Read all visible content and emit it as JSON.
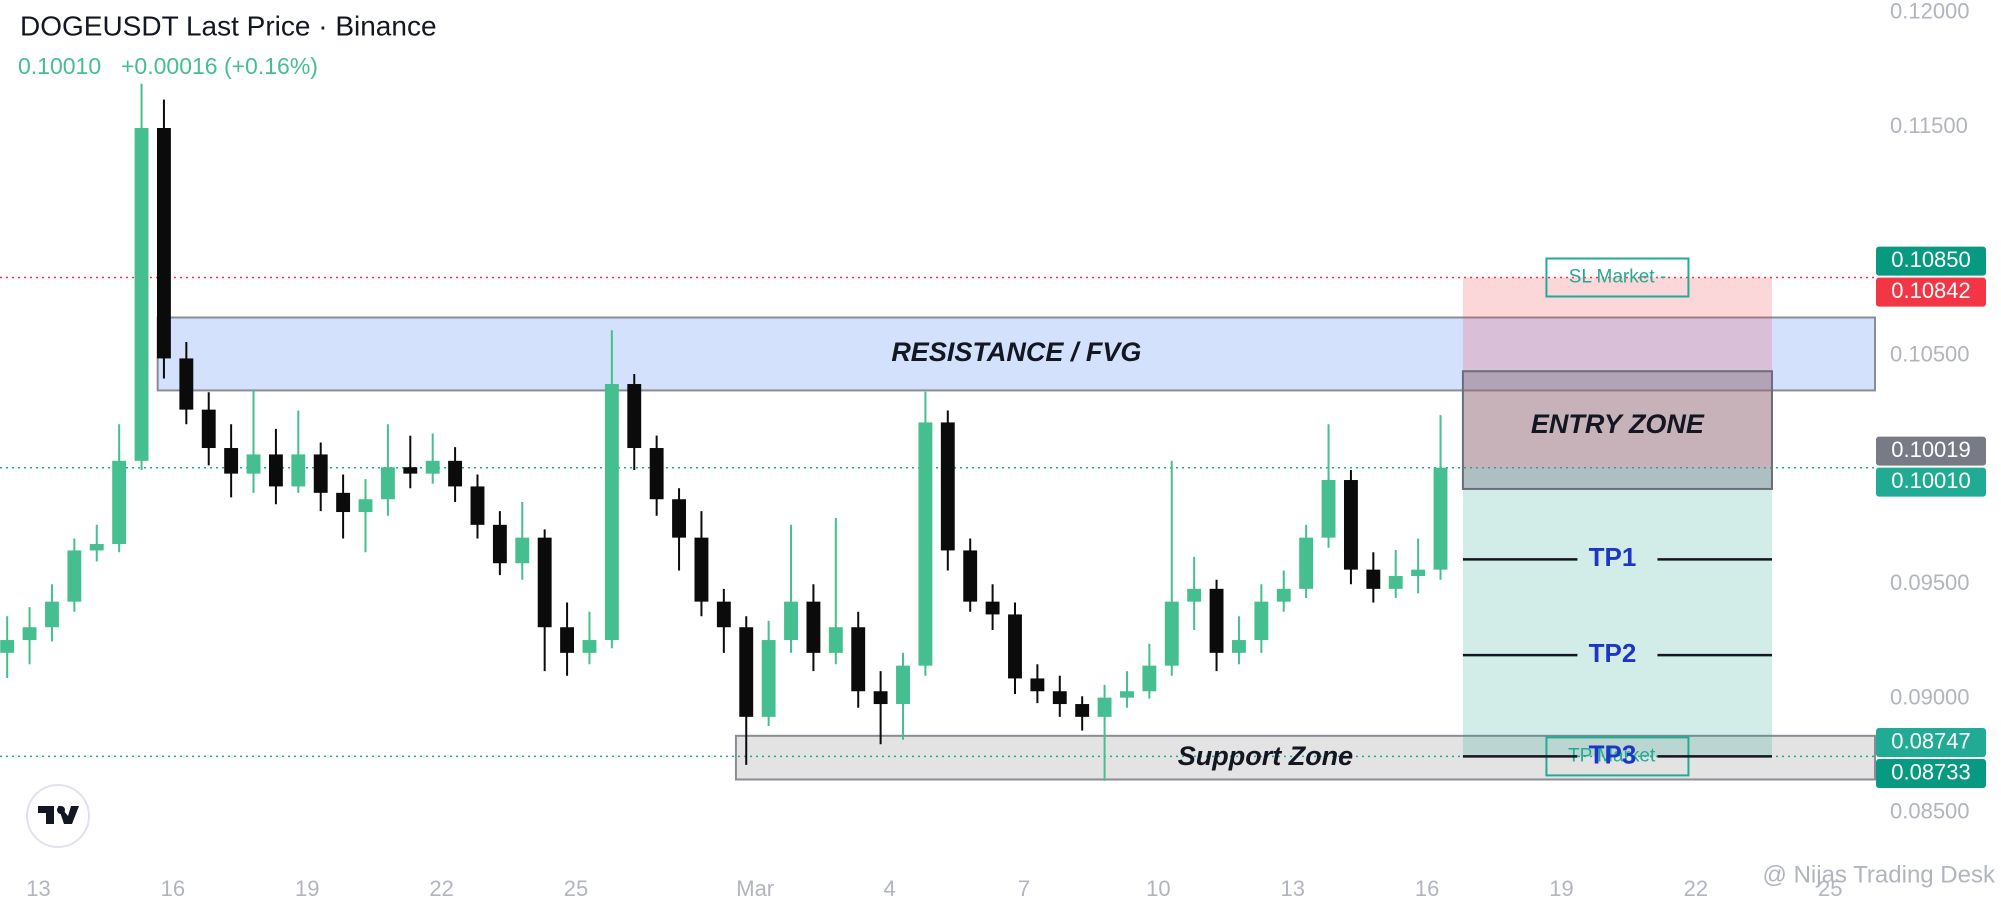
{
  "header": {
    "title": "DOGEUSDT Last Price · Binance",
    "last_price": "0.10010",
    "change": "+0.00016 (+0.16%)"
  },
  "watermark": "@ Nijas Trading Desk",
  "chart_data": {
    "type": "candlestick",
    "up_color": "#45bf8f",
    "down_color": "#0b0b0b",
    "x": [
      -0.7,
      -0.2,
      0.3,
      0.8,
      1.3,
      1.8,
      2.3,
      2.8,
      3.3,
      3.8,
      4.3,
      4.8,
      5.3,
      5.8,
      6.3,
      6.8,
      7.3,
      7.8,
      8.3,
      8.8,
      9.3,
      9.8,
      10.3,
      10.8,
      11.3,
      11.8,
      12.3,
      12.8,
      13.3,
      13.8,
      14.3,
      14.8,
      15.3,
      15.8,
      16.3,
      16.8,
      17.3,
      17.8,
      18.3,
      18.8,
      19.3,
      19.8,
      20.3,
      20.8,
      21.3,
      21.8,
      22.3,
      22.8,
      23.3,
      23.8,
      24.3,
      24.8,
      25.3,
      25.8,
      26.3,
      26.8,
      27.3,
      27.8,
      28.3,
      28.8,
      29.3,
      29.8,
      30.3,
      30.8,
      31.3
    ],
    "open": [
      0.092,
      0.09256,
      0.09312,
      0.09424,
      0.09648,
      0.09676,
      0.1004,
      0.11496,
      0.10488,
      0.10264,
      0.10096,
      0.09984,
      0.10068,
      0.09928,
      0.10068,
      0.099,
      0.09816,
      0.09872,
      0.10012,
      0.09984,
      0.1004,
      0.09928,
      0.0976,
      0.09592,
      0.09704,
      0.09312,
      0.092,
      0.09256,
      0.10376,
      0.10096,
      0.09872,
      0.09704,
      0.09424,
      0.09312,
      0.0892,
      0.09256,
      0.09424,
      0.092,
      0.09312,
      0.09032,
      0.08976,
      0.09144,
      0.10208,
      0.09648,
      0.09424,
      0.09368,
      0.09088,
      0.09032,
      0.08976,
      0.0892,
      0.09004,
      0.09032,
      0.09144,
      0.09424,
      0.0948,
      0.092,
      0.09256,
      0.09424,
      0.0948,
      0.09704,
      0.09956,
      0.09564,
      0.0948,
      0.09536,
      0.09564
    ],
    "high": [
      0.0936,
      0.094,
      0.095,
      0.097,
      0.0976,
      0.102,
      0.1169,
      0.1162,
      0.1056,
      0.1034,
      0.102,
      0.1035,
      0.1018,
      0.1026,
      0.1012,
      0.0998,
      0.0996,
      0.102,
      0.1015,
      0.1016,
      0.101,
      0.0998,
      0.0982,
      0.0986,
      0.0974,
      0.0942,
      0.0938,
      0.10611,
      0.1042,
      0.1015,
      0.0992,
      0.0982,
      0.0948,
      0.0936,
      0.0934,
      0.0976,
      0.095,
      0.0979,
      0.0938,
      0.0912,
      0.092,
      0.10342,
      0.1026,
      0.097,
      0.095,
      0.0942,
      0.0915,
      0.091,
      0.0901,
      0.0906,
      0.0912,
      0.0924,
      0.1004,
      0.0962,
      0.0952,
      0.0936,
      0.095,
      0.0956,
      0.0976,
      0.102,
      0.1,
      0.0964,
      0.0965,
      0.097,
      0.1024
    ],
    "low": [
      0.0909,
      0.0915,
      0.0925,
      0.0938,
      0.096,
      0.0964,
      0.1,
      0.104,
      0.102,
      0.1002,
      0.0988,
      0.099,
      0.0985,
      0.099,
      0.0982,
      0.097,
      0.0964,
      0.098,
      0.0992,
      0.0994,
      0.0986,
      0.097,
      0.0954,
      0.0952,
      0.0912,
      0.091,
      0.0915,
      0.0922,
      0.1,
      0.098,
      0.0956,
      0.0936,
      0.092,
      0.0871,
      0.0888,
      0.092,
      0.0912,
      0.0915,
      0.0896,
      0.088,
      0.0882,
      0.091,
      0.0956,
      0.0938,
      0.093,
      0.0902,
      0.0898,
      0.0892,
      0.0886,
      0.0864,
      0.0896,
      0.09,
      0.091,
      0.093,
      0.0912,
      0.0915,
      0.092,
      0.0938,
      0.0944,
      0.0966,
      0.095,
      0.0942,
      0.0944,
      0.0946,
      0.0952
    ],
    "close": [
      0.09256,
      0.09312,
      0.09424,
      0.09648,
      0.09676,
      0.1004,
      0.11496,
      0.10488,
      0.10264,
      0.10096,
      0.09984,
      0.10068,
      0.09928,
      0.10068,
      0.099,
      0.09816,
      0.09872,
      0.10012,
      0.09984,
      0.1004,
      0.09928,
      0.0976,
      0.09592,
      0.09704,
      0.09312,
      0.092,
      0.09256,
      0.10376,
      0.10096,
      0.09872,
      0.09704,
      0.09424,
      0.09312,
      0.0892,
      0.09256,
      0.09424,
      0.092,
      0.09312,
      0.09032,
      0.08976,
      0.09144,
      0.10208,
      0.09648,
      0.09424,
      0.09368,
      0.09088,
      0.09032,
      0.08976,
      0.0892,
      0.09004,
      0.09032,
      0.09144,
      0.09424,
      0.0948,
      0.092,
      0.09256,
      0.09424,
      0.0948,
      0.09704,
      0.09956,
      0.09564,
      0.0948,
      0.09536,
      0.09564,
      0.1001
    ],
    "xlim": [
      -0.86,
      41
    ],
    "xticks": [
      {
        "value": 0,
        "label": "13"
      },
      {
        "value": 3,
        "label": "16"
      },
      {
        "value": 6,
        "label": "19"
      },
      {
        "value": 9,
        "label": "22"
      },
      {
        "value": 12,
        "label": "25"
      },
      {
        "value": 16,
        "label": "Mar"
      },
      {
        "value": 19,
        "label": "4"
      },
      {
        "value": 22,
        "label": "7"
      },
      {
        "value": 25,
        "label": "10"
      },
      {
        "value": 28,
        "label": "13"
      },
      {
        "value": 31,
        "label": "16"
      },
      {
        "value": 34,
        "label": "19"
      },
      {
        "value": 37,
        "label": "22"
      },
      {
        "value": 40,
        "label": "25"
      }
    ],
    "ylim": [
      0.0825,
      0.12056
    ],
    "yticks": [
      {
        "value": 0.12,
        "label": "0.12000"
      },
      {
        "value": 0.115,
        "label": "0.11500"
      },
      {
        "value": 0.105,
        "label": "0.10500"
      },
      {
        "value": 0.095,
        "label": "0.09500"
      },
      {
        "value": 0.09,
        "label": "0.09000"
      },
      {
        "value": 0.085,
        "label": "0.08500"
      }
    ],
    "zones": [
      {
        "label": "RESISTANCE / FVG",
        "top": 0.10667,
        "bottom": 0.10348,
        "start": 2.66,
        "color": "#c9dafc"
      },
      {
        "label": "Support Zone",
        "top": 0.08837,
        "bottom": 0.08646,
        "start": 15.57,
        "color": "#dcdcdc"
      }
    ],
    "position": {
      "start": 31.8,
      "end": 38.7,
      "stop": 0.10842,
      "entry": 0.1001,
      "target": 0.08747,
      "stop_label": "SL Market -",
      "target_label": "TP Market -"
    },
    "entry_zone": {
      "label": "ENTRY ZONE",
      "top": 0.10432,
      "bottom": 0.09917
    },
    "take_profits": [
      {
        "label": "TP1",
        "value": 0.09609
      },
      {
        "label": "TP2",
        "value": 0.0919
      },
      {
        "label": "TP3",
        "value": 0.08747
      }
    ],
    "price_labels": [
      {
        "value": 0.1085,
        "label": "0.10850",
        "color": "#089981"
      },
      {
        "value": 0.10842,
        "label": "0.10842",
        "color": "#f23645",
        "line": true
      },
      {
        "value": 0.10019,
        "label": "0.10019",
        "color": "#787b86"
      },
      {
        "value": 0.1001,
        "label": "0.10010",
        "color": "#22ab94",
        "line": true
      },
      {
        "value": 0.08747,
        "label": "0.08747",
        "color": "#22ab94",
        "line": true
      },
      {
        "value": 0.08733,
        "label": "0.08733",
        "color": "#089981"
      }
    ]
  }
}
